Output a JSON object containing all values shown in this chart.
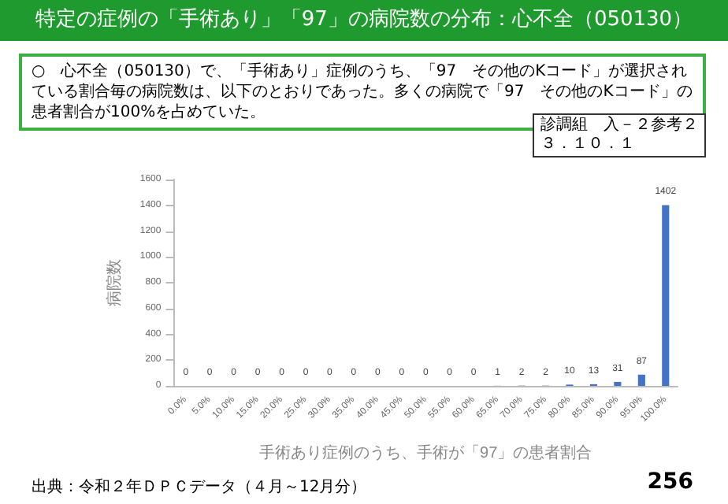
{
  "chart_data": {
    "type": "bar",
    "title": "特定の症例の「手術あり」「97」の病院数の分布：心不全（050130）",
    "subtitle": "○　心不全（050130）で、「手術あり」症例のうち、「97　その他のKコード」が選択されている割合毎の病院数は、以下のとおりであった。多くの病院で「97　その他のKコード」の患者割合が100%を占めていた。",
    "annotations": [
      "診調組　入－２参考２",
      "３．１０．１",
      "出典：令和２年ＤＰＣデータ（４月～12月分）",
      "256"
    ],
    "xlabel": "手術あり症例のうち、手術が「97」の患者割合",
    "ylabel": "病院数",
    "categories": [
      "0.0%",
      "5.0%",
      "10.0%",
      "15.0%",
      "20.0%",
      "25.0%",
      "30.0%",
      "35.0%",
      "40.0%",
      "45.0%",
      "50.0%",
      "55.0%",
      "60.0%",
      "65.0%",
      "70.0%",
      "75.0%",
      "80.0%",
      "85.0%",
      "90.0%",
      "95.0%",
      "100.0%"
    ],
    "values": [
      0,
      0,
      0,
      0,
      0,
      0,
      0,
      0,
      0,
      0,
      0,
      0,
      0,
      1,
      2,
      2,
      10,
      13,
      31,
      87,
      1402
    ],
    "color": "#4472c4",
    "ylim": [
      0,
      1600
    ],
    "yticks": [
      0,
      200,
      400,
      600,
      800,
      1000,
      1200,
      1400,
      1600
    ],
    "grid": false,
    "data_labels": true
  }
}
